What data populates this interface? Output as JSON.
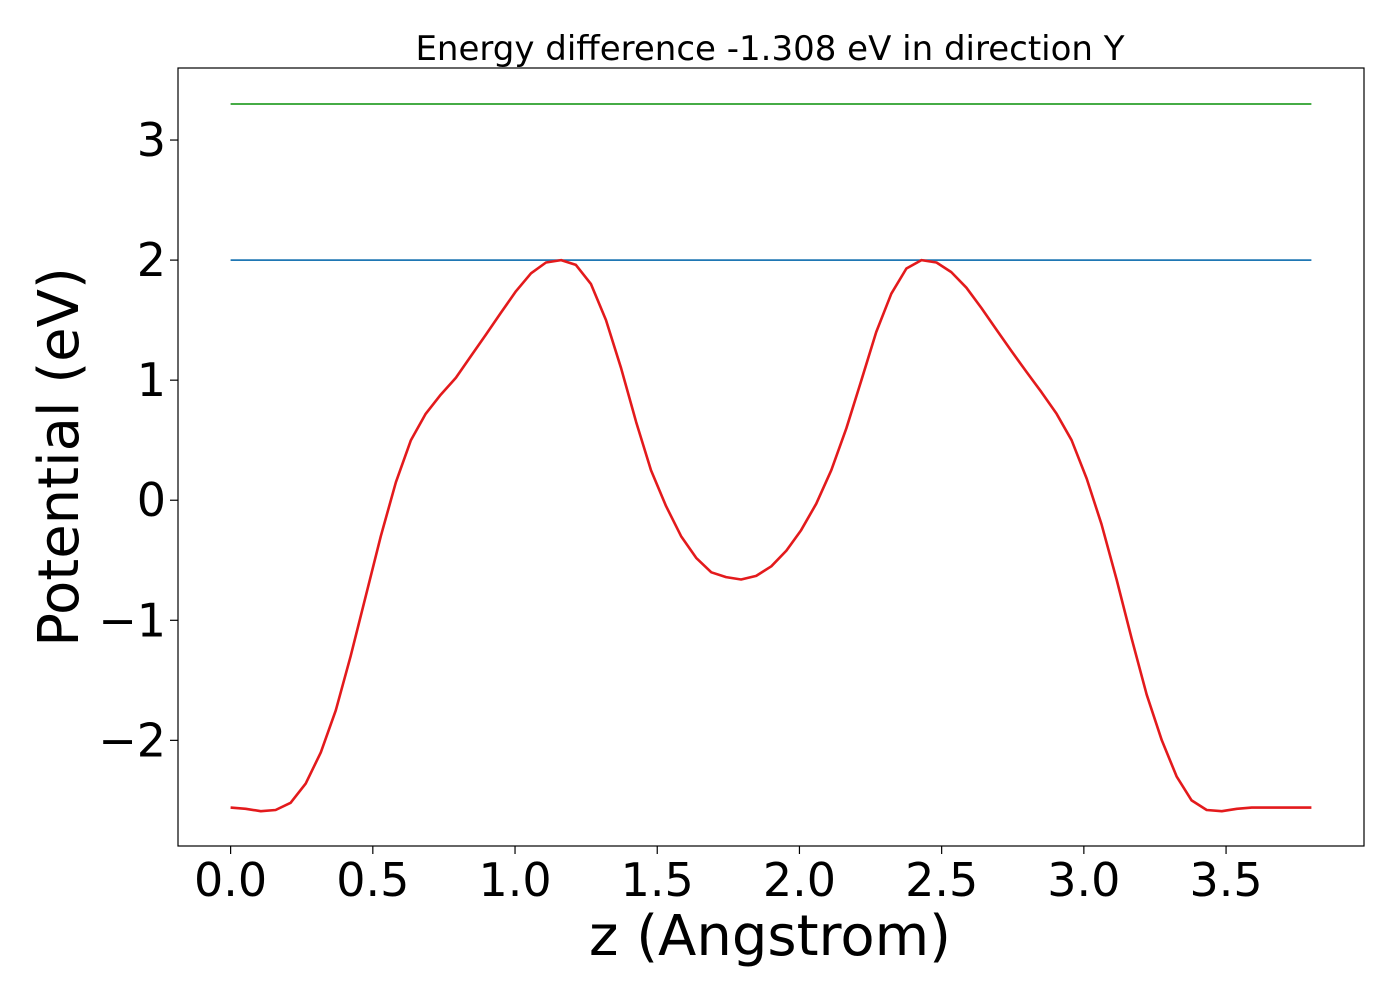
{
  "chart_data": {
    "type": "line",
    "title": "Energy difference -1.308 eV in direction Y",
    "xlabel": "z (Angstrom)",
    "ylabel": "Potential (eV)",
    "xlim": [
      -0.185,
      3.985
    ],
    "ylim": [
      -2.88,
      3.6
    ],
    "xticks": [
      0.0,
      0.5,
      1.0,
      1.5,
      2.0,
      2.5,
      3.0,
      3.5
    ],
    "xtick_labels": [
      "0.0",
      "0.5",
      "1.0",
      "1.5",
      "2.0",
      "2.5",
      "3.0",
      "3.5"
    ],
    "yticks": [
      -2,
      -1,
      0,
      1,
      2,
      3
    ],
    "ytick_labels": [
      "−2",
      "−1",
      "0",
      "1",
      "2",
      "3"
    ],
    "grid": false,
    "legend": "none",
    "series": [
      {
        "color": "#2ca02c",
        "x": [
          0.0,
          3.8
        ],
        "y": [
          3.3,
          3.3
        ]
      },
      {
        "color": "#1f77b4",
        "x": [
          0.0,
          3.8
        ],
        "y": [
          2.0,
          2.0
        ]
      },
      {
        "color": "#e31a1c",
        "x": [
          0.0,
          0.053,
          0.106,
          0.158,
          0.211,
          0.264,
          0.317,
          0.37,
          0.422,
          0.475,
          0.528,
          0.581,
          0.634,
          0.686,
          0.739,
          0.792,
          0.845,
          0.898,
          0.95,
          1.003,
          1.056,
          1.109,
          1.162,
          1.214,
          1.267,
          1.32,
          1.373,
          1.426,
          1.478,
          1.531,
          1.584,
          1.637,
          1.69,
          1.742,
          1.795,
          1.848,
          1.901,
          1.954,
          2.006,
          2.059,
          2.112,
          2.165,
          2.218,
          2.27,
          2.323,
          2.376,
          2.429,
          2.482,
          2.534,
          2.587,
          2.64,
          2.693,
          2.746,
          2.798,
          2.851,
          2.904,
          2.957,
          3.01,
          3.062,
          3.115,
          3.168,
          3.221,
          3.274,
          3.326,
          3.379,
          3.432,
          3.485,
          3.538,
          3.59,
          3.643,
          3.696,
          3.749,
          3.8
        ],
        "y": [
          -2.56,
          -2.57,
          -2.59,
          -2.58,
          -2.52,
          -2.36,
          -2.1,
          -1.75,
          -1.3,
          -0.8,
          -0.3,
          0.15,
          0.5,
          0.72,
          0.88,
          1.02,
          1.2,
          1.38,
          1.56,
          1.74,
          1.89,
          1.98,
          2.0,
          1.96,
          1.8,
          1.5,
          1.1,
          0.65,
          0.25,
          -0.05,
          -0.3,
          -0.48,
          -0.6,
          -0.64,
          -0.66,
          -0.63,
          -0.55,
          -0.42,
          -0.25,
          -0.03,
          0.25,
          0.6,
          1.0,
          1.4,
          1.72,
          1.93,
          2.0,
          1.98,
          1.9,
          1.77,
          1.6,
          1.42,
          1.24,
          1.07,
          0.9,
          0.72,
          0.5,
          0.18,
          -0.2,
          -0.66,
          -1.15,
          -1.62,
          -2.0,
          -2.3,
          -2.5,
          -2.58,
          -2.59,
          -2.57,
          -2.56,
          -2.56,
          -2.56,
          -2.56,
          -2.56
        ]
      }
    ]
  }
}
